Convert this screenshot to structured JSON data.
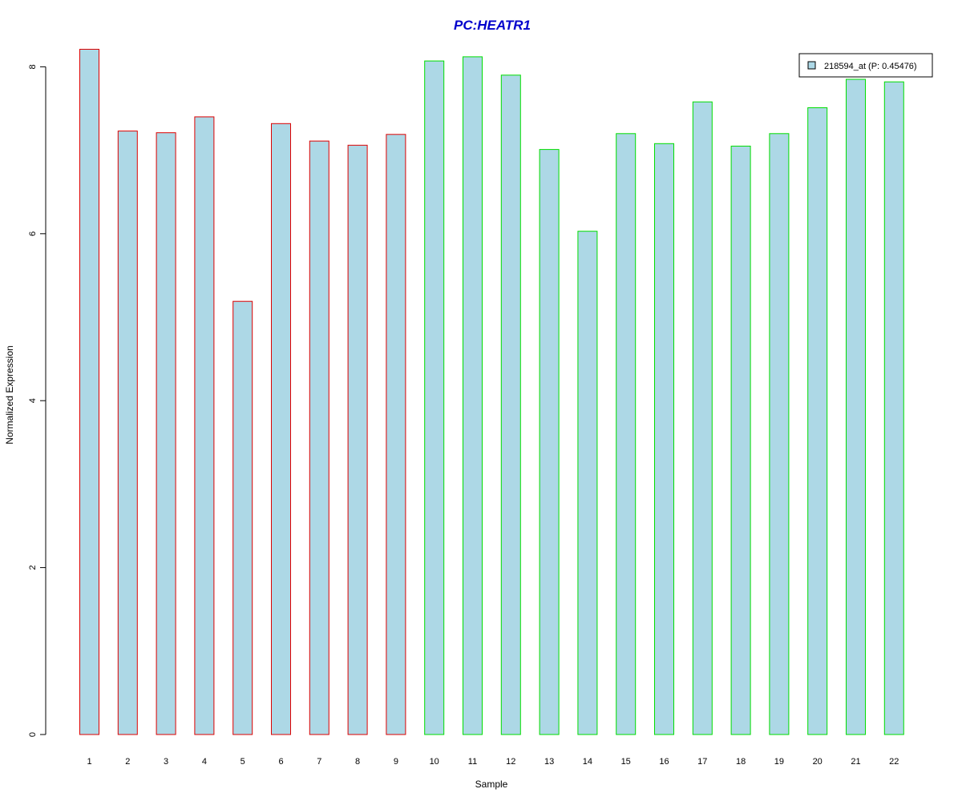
{
  "chart_data": {
    "type": "bar",
    "title": "PC:HEATR1",
    "xlabel": "Sample",
    "ylabel": "Normalized Expression",
    "categories": [
      "1",
      "2",
      "3",
      "4",
      "5",
      "6",
      "7",
      "8",
      "9",
      "10",
      "11",
      "12",
      "13",
      "14",
      "15",
      "16",
      "17",
      "18",
      "19",
      "20",
      "21",
      "22"
    ],
    "series": [
      {
        "name": "218594_at (P: 0.45476)",
        "values": [
          8.21,
          7.23,
          7.21,
          7.4,
          5.19,
          7.32,
          7.11,
          7.06,
          7.19,
          8.07,
          8.12,
          7.9,
          7.01,
          6.03,
          7.2,
          7.08,
          7.58,
          7.05,
          7.2,
          7.51,
          7.85,
          7.82
        ]
      }
    ],
    "group_colors": [
      "#dd0000",
      "#dd0000",
      "#dd0000",
      "#dd0000",
      "#dd0000",
      "#dd0000",
      "#dd0000",
      "#dd0000",
      "#dd0000",
      "#00dd00",
      "#00dd00",
      "#00dd00",
      "#00dd00",
      "#00dd00",
      "#00dd00",
      "#00dd00",
      "#00dd00",
      "#00dd00",
      "#00dd00",
      "#00dd00",
      "#00dd00",
      "#00dd00"
    ],
    "bar_fill": "#add8e6",
    "title_color": "#0000cc",
    "y_ticks": [
      0,
      2,
      4,
      6,
      8
    ],
    "ylim": [
      0,
      8.35
    ],
    "grid": false,
    "legend_position": "top-right"
  }
}
